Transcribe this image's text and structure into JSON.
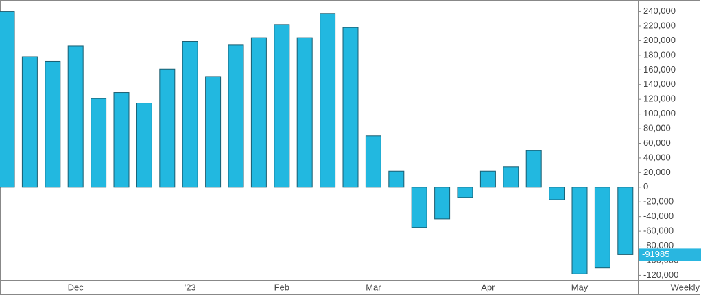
{
  "chart_data": {
    "type": "bar",
    "categories": [
      null,
      null,
      null,
      "Dec",
      null,
      null,
      null,
      null,
      "'23",
      null,
      null,
      null,
      "Feb",
      null,
      null,
      null,
      "Mar",
      null,
      null,
      null,
      null,
      "Apr",
      null,
      null,
      null,
      "May",
      null,
      null
    ],
    "values": [
      240000,
      178000,
      172000,
      193000,
      121000,
      129000,
      115000,
      161000,
      199000,
      151000,
      194000,
      204000,
      222000,
      204000,
      237000,
      218000,
      70000,
      22000,
      -55000,
      -43000,
      -14000,
      22000,
      28000,
      50000,
      -17000,
      -118000,
      -110000,
      -91985
    ],
    "color": "#22b8e0",
    "interval": "Weekly",
    "ylim": [
      -128000,
      248000
    ],
    "yticks": [
      {
        "value": -120000,
        "label": "-120,000"
      },
      {
        "value": -100000,
        "label": "-100,000"
      },
      {
        "value": -80000,
        "label": "-80,000"
      },
      {
        "value": -60000,
        "label": "-60,000"
      },
      {
        "value": -40000,
        "label": "-40,000"
      },
      {
        "value": -20000,
        "label": "-20,000"
      },
      0,
      {
        "value": 20000,
        "label": "20,000"
      },
      {
        "value": 40000,
        "label": "40,000"
      },
      {
        "value": 60000,
        "label": "60,000"
      },
      {
        "value": 80000,
        "label": "80,000"
      },
      {
        "value": 100000,
        "label": "100,000"
      },
      {
        "value": 120000,
        "label": "120,000"
      },
      {
        "value": 140000,
        "label": "140,000"
      },
      {
        "value": 160000,
        "label": "160,000"
      },
      {
        "value": 180000,
        "label": "180,000"
      },
      {
        "value": 200000,
        "label": "200,000"
      },
      {
        "value": 220000,
        "label": "220,000"
      },
      {
        "value": 240000,
        "label": "240,000"
      }
    ]
  }
}
